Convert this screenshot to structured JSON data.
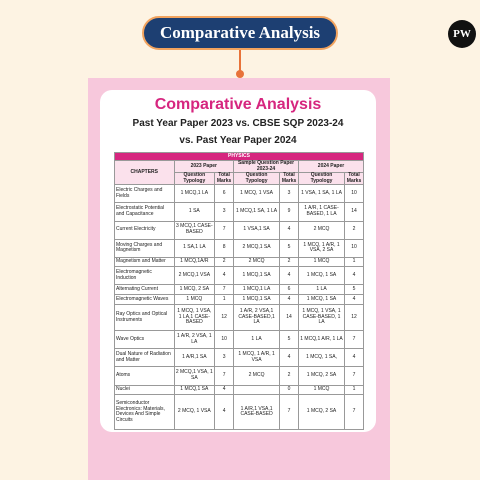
{
  "header": {
    "title": "Comparative Analysis",
    "logo": "PW"
  },
  "card": {
    "title": "Comparative Analysis",
    "subtitle_lines": [
      "Past Year Paper 2023 vs. CBSE SQP 2023-24",
      "vs. Past Year Paper 2024"
    ]
  },
  "table": {
    "subject": "PHYSICS",
    "chapters_header": "CHAPTERS",
    "groups": [
      "2023 Paper",
      "Sample Question Paper 2023-24",
      "2024 Paper"
    ],
    "subheaders": [
      "Question Typology",
      "Total Marks"
    ],
    "rows": [
      [
        "Electric Charges and Fields",
        "1 MCQ,1 LA",
        6,
        "1 MCQ, 1 VSA",
        3,
        "1 VSA, 1 SA, 1 LA",
        10
      ],
      [
        "Electrostatic Potential and Capacitance",
        "1 SA",
        3,
        "1 MCQ,1 SA, 1 LA",
        9,
        "1 A/R, 1 CASE-BASED, 1 LA",
        14
      ],
      [
        "Current Electricity",
        "3 MCQ,1 CASE-BASED",
        7,
        "1 VSA,1 SA",
        4,
        "2 MCQ",
        2
      ],
      [
        "Moving Charges and Magnetism",
        "1 SA,1 LA",
        8,
        "2 MCQ,1 SA",
        5,
        "1 MCQ, 1 A/R, 1 VSA, 2 SA",
        10
      ],
      [
        "Magnetism and Matter",
        "1 MCQ,1A/R",
        2,
        "2 MCQ",
        2,
        "1 MCQ",
        1
      ],
      [
        "Electromagnetic Induction",
        "2 MCQ,1 VSA",
        4,
        "1 MCQ,1 SA",
        4,
        "1 MCQ, 1 SA",
        4
      ],
      [
        "Alternating Current",
        "1 MCQ, 2 SA",
        7,
        "1 MCQ,1 LA",
        6,
        "1 LA",
        5
      ],
      [
        "Electromagnetic Waves",
        "1 MCQ",
        1,
        "1 MCQ,1 SA",
        4,
        "1 MCQ, 1 SA",
        4
      ],
      [
        "Ray Optics and Optical Instruments",
        "1 MCQ, 1 VSA, 1 LA,1 CASE-BASED",
        12,
        "1 A/R, 2 VSA,1 CASE-BASED,1 LA",
        14,
        "1 MCQ, 1 VSA, 1 CASE-BASED, 1 LA",
        12
      ],
      [
        "Wave Optics",
        "1 A/R, 2 VSA, 1 LA",
        10,
        "1 LA",
        5,
        "1 MCQ,1 A/R, 1 LA",
        7
      ],
      [
        "Dual Nature of Radiation and Matter",
        "1 A/R,1 SA",
        3,
        "1 MCQ, 1 A/R, 1 VSA",
        4,
        "1 MCQ, 1 SA,",
        4
      ],
      [
        "Atoms",
        "2 MCQ,1 VSA, 1 SA",
        7,
        "2 MCQ",
        2,
        "1 MCQ, 2 SA",
        7
      ],
      [
        "Nuclei",
        "1 MCQ,1 SA",
        4,
        null,
        0,
        "1 MCQ",
        1
      ],
      [
        "Semiconductor Electronics: Materials, Devices And Simple Circuits",
        "2 MCQ, 1 VSA",
        4,
        "1 A/R,1 VSA,1 CASE-BASED",
        7,
        "1 MCQ, 2 SA",
        7
      ]
    ]
  }
}
